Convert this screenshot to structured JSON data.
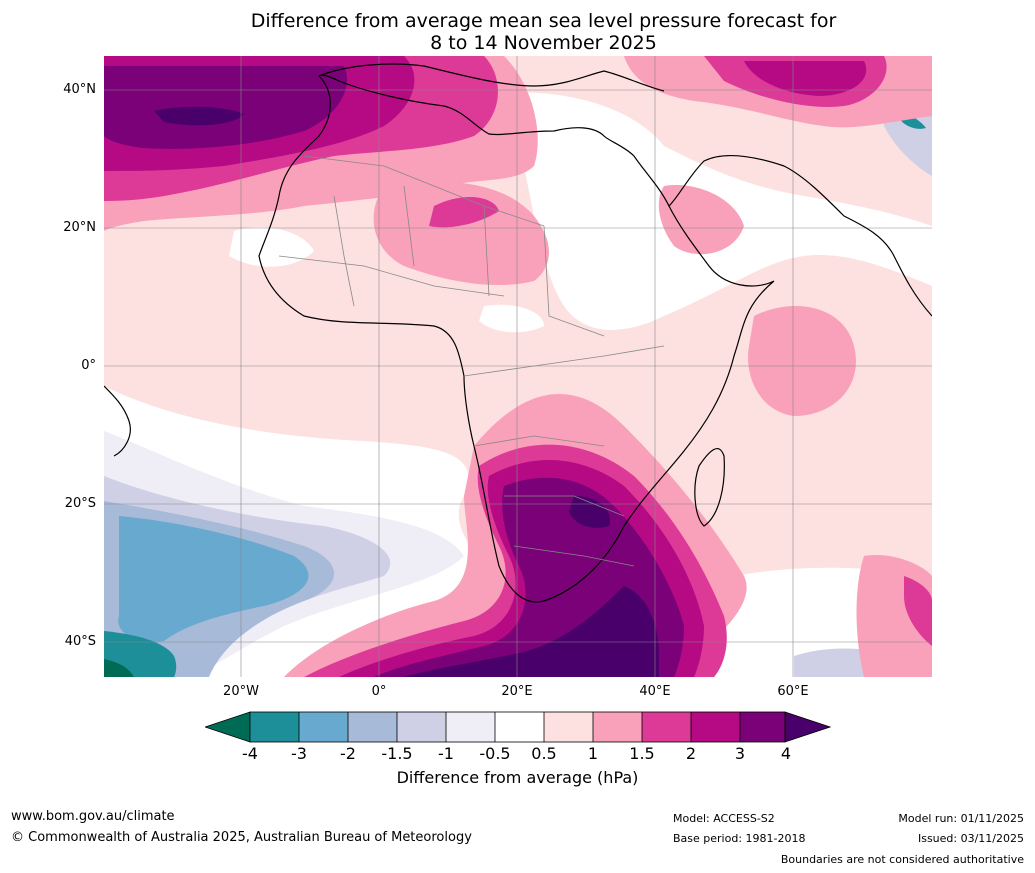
{
  "title": {
    "line1": "Difference from average mean sea level pressure forecast for",
    "line2": "8 to 14 November 2025"
  },
  "axes": {
    "lat_labels": [
      "40°N",
      "20°N",
      "0°",
      "20°S",
      "40°S"
    ],
    "lon_labels": [
      "20°W",
      "0°",
      "20°E",
      "40°E",
      "60°E"
    ]
  },
  "colorbar": {
    "ticks": [
      "-4",
      "-3",
      "-2",
      "-1.5",
      "-1",
      "-0.5",
      "0.5",
      "1",
      "1.5",
      "2",
      "3",
      "4"
    ],
    "label": "Difference from average (hPa)",
    "colors": {
      "below_-4": "#006b54",
      "-4_-3": "#1d8f98",
      "-3_-2": "#67a9cf",
      "-2_-1.5": "#a7bad8",
      "-1.5_-1": "#cfd0e5",
      "-1_-0.5": "#efedf5",
      "-0.5_0.5": "#ffffff",
      "0.5_1": "#fde0e0",
      "1_1.5": "#f9a0ba",
      "1.5_2": "#dd3997",
      "2_3": "#b50a83",
      "3_4": "#7a0177",
      "above_4": "#49006a"
    }
  },
  "footer": {
    "website": "www.bom.gov.au/climate",
    "copyright": "© Commonwealth of Australia 2025, Australian Bureau of Meteorology",
    "model": "Model: ACCESS-S2",
    "base_period": "Base period: 1981-2018",
    "model_run": "Model run: 01/11/2025",
    "issued": "Issued: 03/11/2025",
    "disclaimer": "Boundaries are not considered authoritative"
  }
}
